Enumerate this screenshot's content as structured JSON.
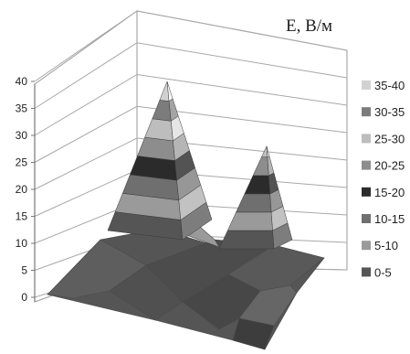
{
  "chart_data": {
    "type": "surface",
    "title": "",
    "zlabel": "E, В/м",
    "zlim": [
      0,
      40
    ],
    "z_ticks": [
      "0",
      "5",
      "10",
      "15",
      "20",
      "25",
      "30",
      "35",
      "40"
    ],
    "grid": true,
    "legend_position": "right",
    "legend": [
      {
        "label": "35-40",
        "color": "#d2d2d2"
      },
      {
        "label": "30-35",
        "color": "#7c7c7c"
      },
      {
        "label": "25-30",
        "color": "#bdbdbd"
      },
      {
        "label": "20-25",
        "color": "#8d8d8d"
      },
      {
        "label": "15-20",
        "color": "#2b2b2b"
      },
      {
        "label": "10-15",
        "color": "#6f6f6f"
      },
      {
        "label": "5-10",
        "color": "#9a9a9a"
      },
      {
        "label": "0-5",
        "color": "#555555"
      }
    ],
    "peaks": [
      {
        "value": 40
      },
      {
        "value": 28
      }
    ],
    "surface_base_range": [
      0,
      5
    ]
  }
}
